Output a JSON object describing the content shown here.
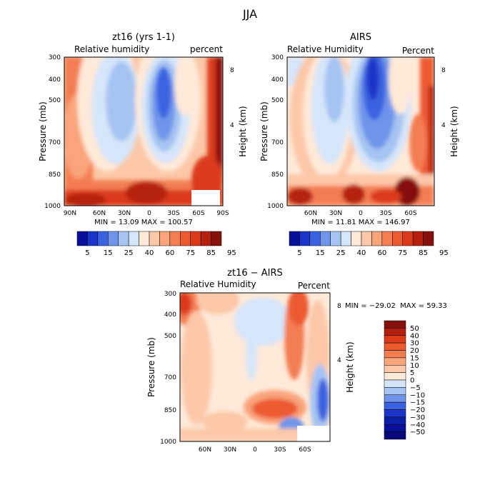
{
  "page_title": "JJA",
  "chart_data": [
    {
      "type": "heatmap",
      "title": "zt16 (yrs 1-1)",
      "subtitle_left": "Relative humidity",
      "subtitle_right": "percent",
      "ylabel": "Pressure (mb)",
      "ylabel_right": "Height (km)",
      "x_ticks": [
        "90N",
        "60N",
        "30N",
        "0",
        "30S",
        "60S",
        "90S"
      ],
      "y_ticks": [
        "300",
        "400",
        "500",
        "700",
        "850",
        "1000"
      ],
      "y_right_ticks": [
        "8",
        "4"
      ],
      "stats": "MIN = 13.09 MAX = 100.57",
      "min": 13.09,
      "max": 100.57,
      "colorbar": {
        "labels": [
          "5",
          "15",
          "25",
          "40",
          "60",
          "75",
          "85",
          "95"
        ],
        "colors": [
          "#08109b",
          "#1a35c8",
          "#3a62e0",
          "#6e95ea",
          "#a6c4f2",
          "#d6e6fa",
          "#ffe9d8",
          "#fcc8a8",
          "#f9a47a",
          "#f47e52",
          "#ec5a30",
          "#db3a1a",
          "#b5200e",
          "#86100a"
        ]
      }
    },
    {
      "type": "heatmap",
      "title": "AIRS",
      "subtitle_left": "Relative Humidity",
      "subtitle_right": "Percent",
      "ylabel": "Pressure (mb)",
      "ylabel_right": "Height (km)",
      "x_ticks": [
        "60N",
        "30N",
        "0",
        "30S",
        "60S"
      ],
      "y_ticks": [
        "300",
        "400",
        "500",
        "700",
        "850",
        "1000"
      ],
      "y_right_ticks": [
        "8",
        "4"
      ],
      "stats": "MIN = 11.81 MAX = 146.97",
      "min": 11.81,
      "max": 146.97,
      "colorbar": {
        "labels": [
          "5",
          "15",
          "25",
          "40",
          "60",
          "75",
          "85",
          "95"
        ],
        "colors": [
          "#08109b",
          "#1a35c8",
          "#3a62e0",
          "#6e95ea",
          "#a6c4f2",
          "#d6e6fa",
          "#ffe9d8",
          "#fcc8a8",
          "#f9a47a",
          "#f47e52",
          "#ec5a30",
          "#db3a1a",
          "#b5200e",
          "#86100a"
        ]
      }
    },
    {
      "type": "heatmap",
      "title": "zt16 − AIRS",
      "subtitle_left": "Relative Humidity",
      "subtitle_right": "Percent",
      "ylabel": "Pressure (mb)",
      "ylabel_right": "Height (km)",
      "x_ticks": [
        "60N",
        "30N",
        "0",
        "30S",
        "60S"
      ],
      "y_ticks": [
        "300",
        "400",
        "500",
        "700",
        "850",
        "1000"
      ],
      "y_right_ticks": [
        "8",
        "4"
      ],
      "stats": "MIN = −29.02  MAX = 59.33",
      "min": -29.02,
      "max": 59.33,
      "colorbar": {
        "labels": [
          "50",
          "40",
          "30",
          "20",
          "15",
          "10",
          "5",
          "0",
          "−5",
          "−10",
          "−15",
          "−20",
          "−30",
          "−40",
          "−50"
        ],
        "colors": [
          "#86100a",
          "#b5200e",
          "#db3a1a",
          "#ec5a30",
          "#f47e52",
          "#f9a47a",
          "#fcc8a8",
          "#ffe9d8",
          "#d6e6fa",
          "#a6c4f2",
          "#6e95ea",
          "#3a62e0",
          "#1a35c8",
          "#0a1fa8",
          "#08109b",
          "#060a7a"
        ]
      }
    }
  ]
}
